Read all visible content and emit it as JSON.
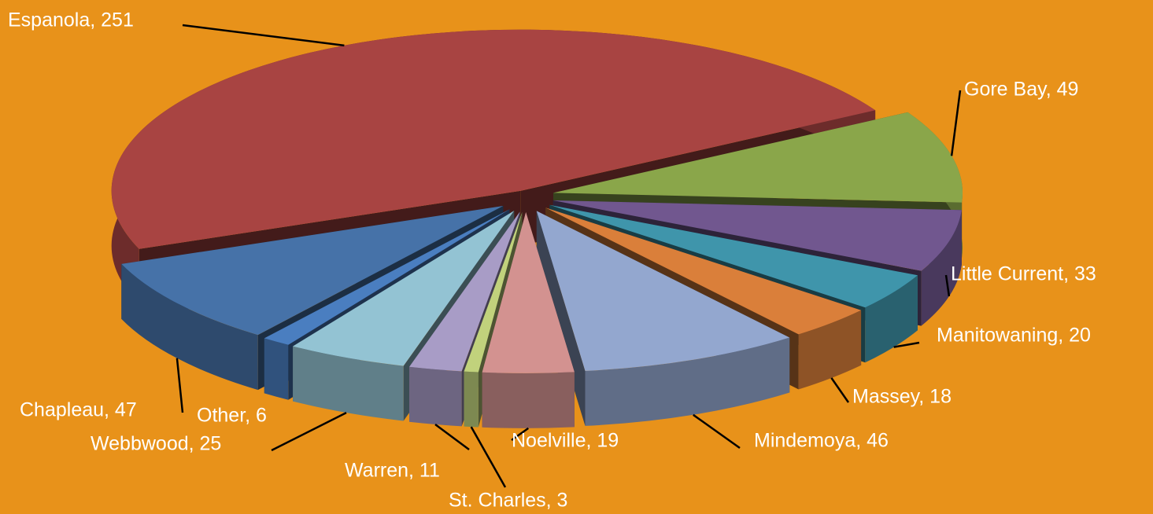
{
  "chart_data": {
    "type": "pie3d",
    "labels": [
      "Gore Bay, 49",
      "Little Current, 33",
      "Manitowaning, 20",
      "Massey, 18",
      "Mindemoya, 46",
      "Noelville, 19",
      "St. Charles, 3",
      "Warren, 11",
      "Webbwood, 25",
      "Other, 6",
      "Chapleau, 47",
      "Espanola, 251"
    ],
    "values": [
      49,
      33,
      20,
      18,
      46,
      19,
      3,
      11,
      25,
      6,
      47,
      251
    ],
    "colors": [
      "#8aa64a",
      "#71578f",
      "#3f95ab",
      "#da7f3a",
      "#93a7cf",
      "#d39290",
      "#c1d27c",
      "#a89cc6",
      "#93c3d3",
      "#4a7ec0",
      "#4672a8",
      "#a84442"
    ]
  }
}
